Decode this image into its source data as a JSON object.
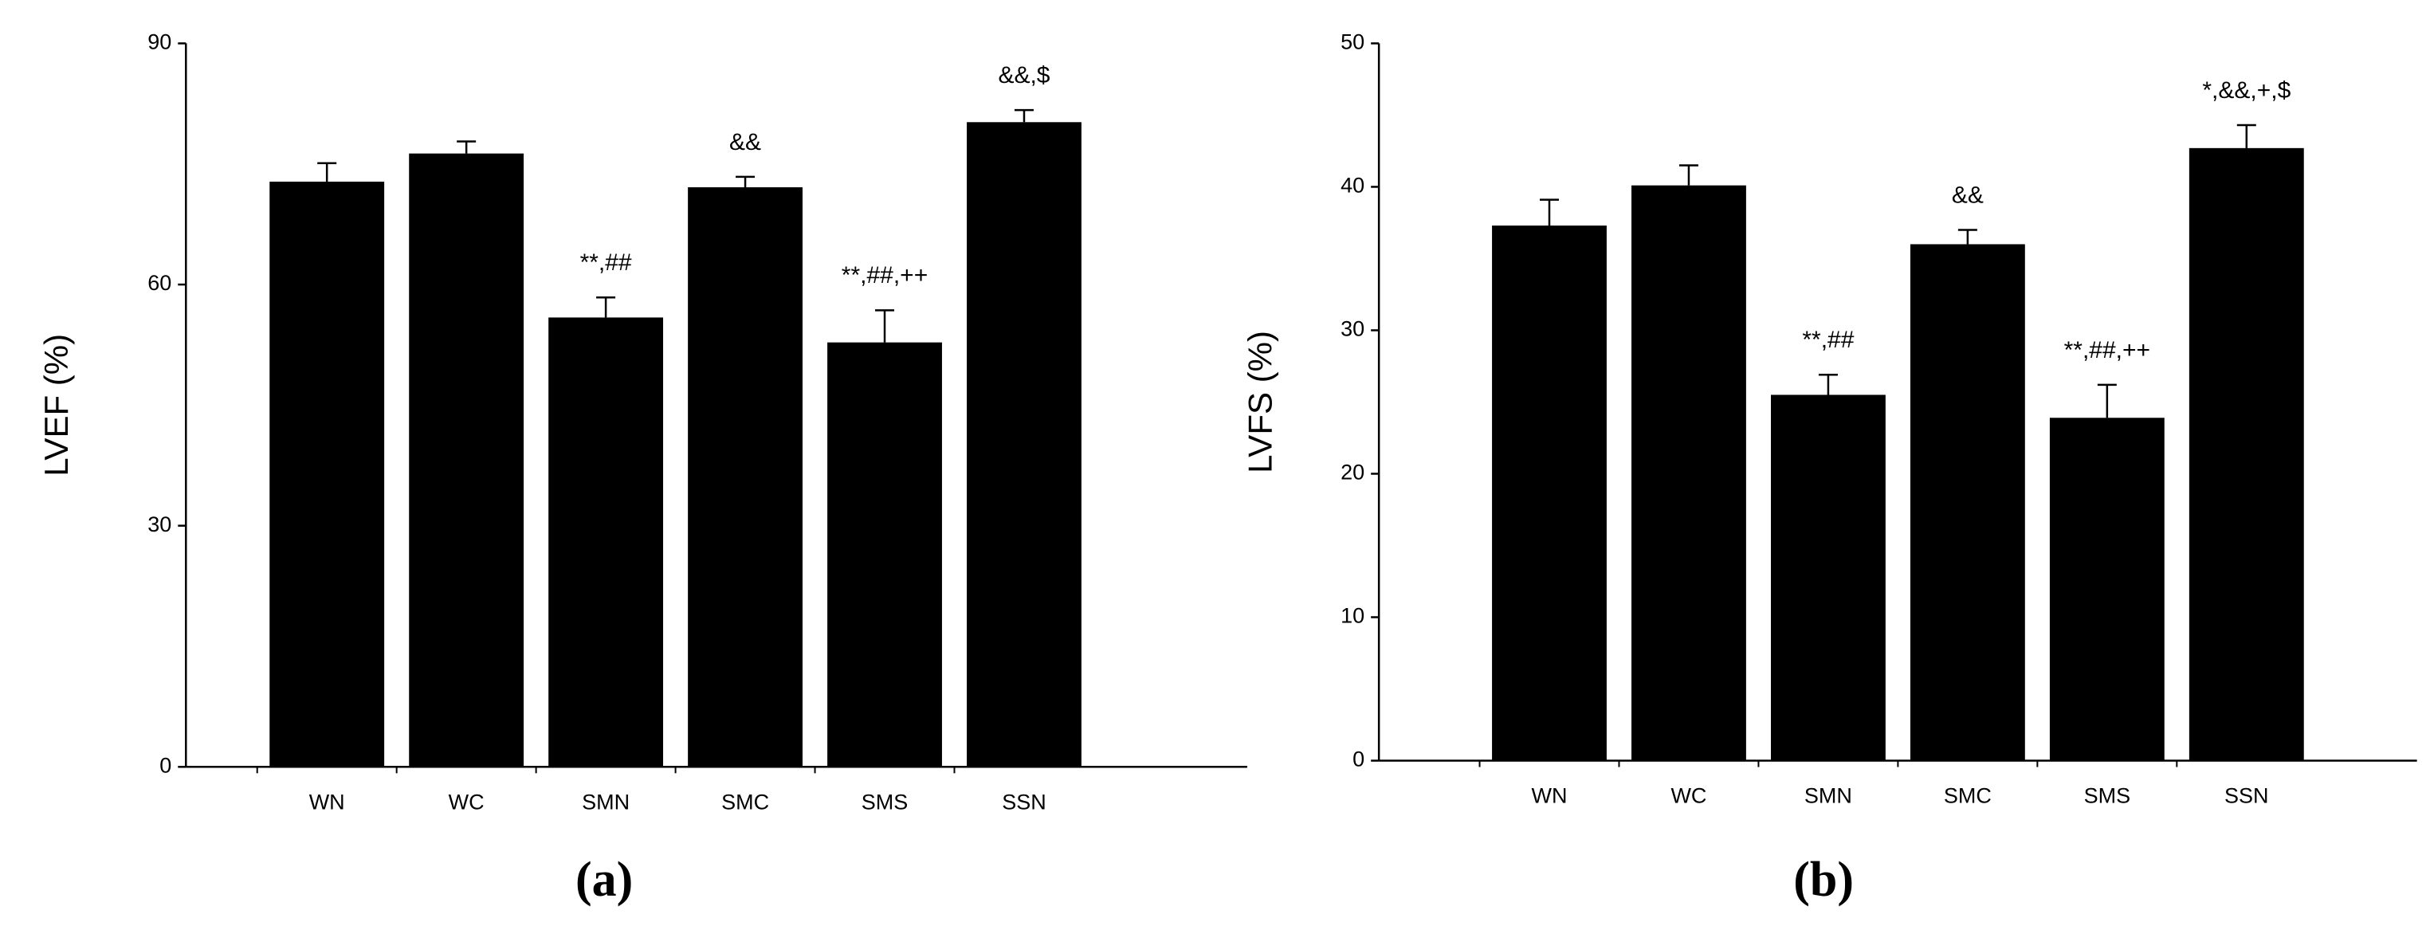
{
  "chart_data": [
    {
      "type": "bar",
      "y_label": "LVEF (%)",
      "caption": "(a)",
      "categories": [
        "WN",
        "WC",
        "SMN",
        "SMC",
        "SMS",
        "SSN"
      ],
      "values": [
        72.8,
        76.3,
        55.9,
        72.1,
        52.8,
        80.2
      ],
      "errors": [
        2.3,
        1.5,
        2.5,
        1.3,
        4.0,
        1.5
      ],
      "annotations": [
        null,
        null,
        "**,##",
        "&&",
        "**,##,++",
        "&&,$"
      ],
      "color": "#000000",
      "ylim": [
        0,
        90
      ],
      "yticks": [
        0,
        30,
        60,
        90
      ]
    },
    {
      "type": "bar",
      "y_label": "LVFS (%)",
      "caption": "(b)",
      "categories": [
        "WN",
        "WC",
        "SMN",
        "SMC",
        "SMS",
        "SSN"
      ],
      "values": [
        37.3,
        40.1,
        25.5,
        36.0,
        23.9,
        42.7
      ],
      "errors": [
        1.8,
        1.4,
        1.4,
        1.0,
        2.3,
        1.6
      ],
      "annotations": [
        null,
        null,
        "**,##",
        "&&",
        "**,##,++",
        "*,&&,+,$"
      ],
      "color": "#000000",
      "ylim": [
        0,
        50
      ],
      "yticks": [
        0,
        10,
        20,
        30,
        40,
        50
      ]
    }
  ]
}
